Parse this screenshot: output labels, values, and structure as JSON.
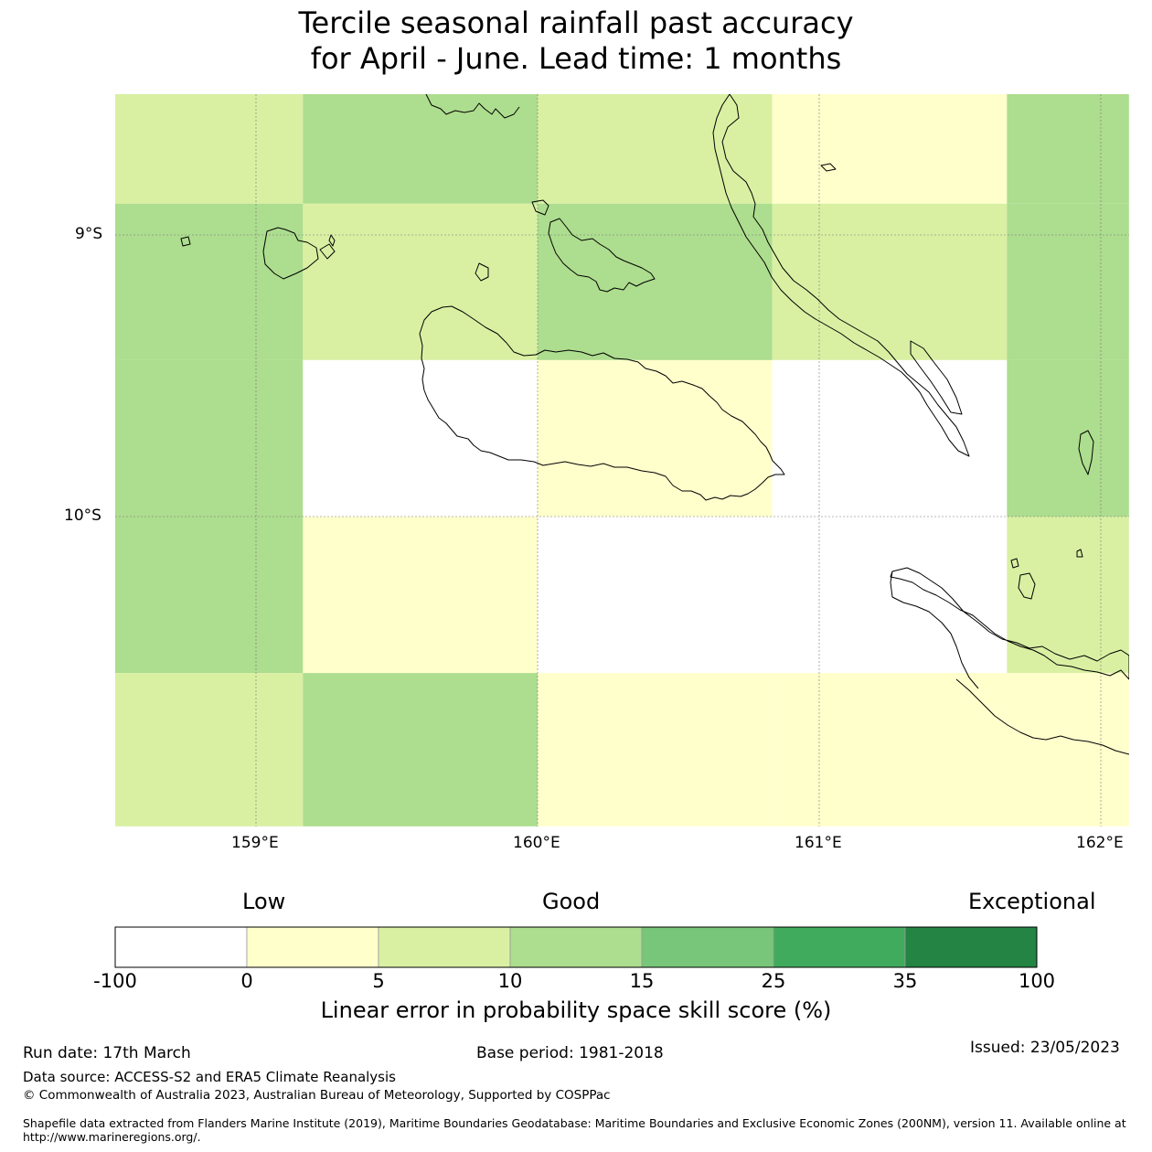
{
  "title": {
    "line1": "Tercile seasonal rainfall past accuracy",
    "line2": "for April - June. Lead time: 1 months"
  },
  "map": {
    "lat_labels": [
      "9°S",
      "10°S"
    ],
    "lon_labels": [
      "159°E",
      "160°E",
      "161°E",
      "162°E"
    ],
    "grid": {
      "lon_edges": [
        158.5,
        159.1667,
        160.0,
        160.8333,
        161.6667,
        162.1
      ],
      "lat_edges": [
        -8.5,
        -8.8889,
        -9.4444,
        -10.0,
        -10.5556,
        -11.1
      ],
      "bins": [
        -100,
        0,
        5,
        10,
        15,
        25,
        35,
        100
      ],
      "cells": [
        [
          2,
          3,
          2,
          1,
          3
        ],
        [
          3,
          2,
          3,
          2,
          3
        ],
        [
          3,
          0,
          1,
          0,
          3
        ],
        [
          3,
          1,
          0,
          0,
          2
        ],
        [
          2,
          3,
          1,
          1,
          1
        ]
      ]
    }
  },
  "colorbar": {
    "category_labels": [
      "Low",
      "Good",
      "Exceptional"
    ],
    "ticks": [
      "-100",
      "0",
      "5",
      "10",
      "15",
      "25",
      "35",
      "100"
    ],
    "colors": [
      "#ffffff",
      "#ffffcc",
      "#d9f0a3",
      "#addd8e",
      "#78c679",
      "#41ab5d",
      "#238443"
    ],
    "label": "Linear error in probability space skill score (%)"
  },
  "footer": {
    "run_date": "Run date: 17th March",
    "base_period": "Base period: 1981-2018",
    "issued": "Issued: 23/05/2023",
    "data_source": "Data source: ACCESS-S2 and ERA5 Climate Reanalysis",
    "copyright": "© Commonwealth of Australia 2023, Australian Bureau of Meteorology, Supported by COSPPac",
    "shapefile_line1": "Shapefile data extracted from Flanders Marine Institute (2019), Maritime Boundaries Geodatabase: Maritime Boundaries and Exclusive Economic Zones (200NM), version 11. Available online at",
    "shapefile_line2": "http://www.marineregions.org/."
  }
}
